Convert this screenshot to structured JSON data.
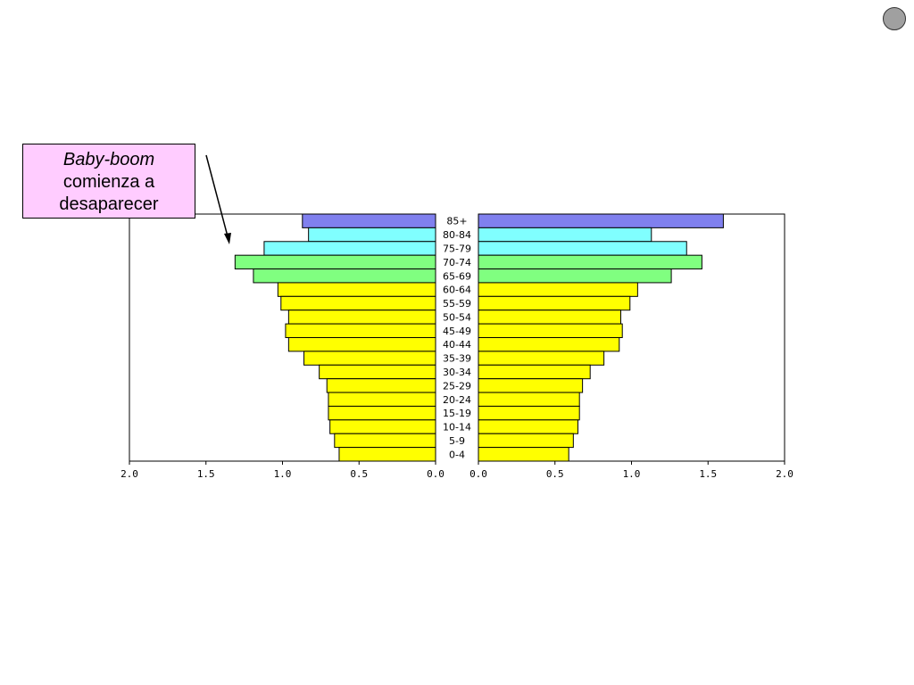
{
  "annotation": {
    "line1": "Baby-boom",
    "line2": "comienza a",
    "line3": "desaparecer"
  },
  "colors": {
    "oldest": "#8080ee",
    "old": "#80ffff",
    "elderly": "#80ff80",
    "main": "#ffff00",
    "callout_bg": "#ffccff"
  },
  "chart_data": {
    "type": "bar",
    "orientation": "horizontal-pyramid",
    "categories": [
      "85+",
      "80-84",
      "75-79",
      "70-74",
      "65-69",
      "60-64",
      "55-59",
      "50-54",
      "45-49",
      "40-44",
      "35-39",
      "30-34",
      "25-29",
      "20-24",
      "15-19",
      "10-14",
      "5-9",
      "0-4"
    ],
    "series": [
      {
        "side": "left",
        "values": [
          0.87,
          0.83,
          1.12,
          1.31,
          1.19,
          1.03,
          1.01,
          0.96,
          0.98,
          0.96,
          0.86,
          0.76,
          0.71,
          0.7,
          0.7,
          0.69,
          0.66,
          0.63
        ]
      },
      {
        "side": "right",
        "values": [
          1.6,
          1.13,
          1.36,
          1.46,
          1.26,
          1.04,
          0.99,
          0.93,
          0.94,
          0.92,
          0.82,
          0.73,
          0.68,
          0.66,
          0.66,
          0.65,
          0.62,
          0.59
        ]
      }
    ],
    "category_colors": [
      "oldest",
      "old",
      "old",
      "elderly",
      "elderly",
      "main",
      "main",
      "main",
      "main",
      "main",
      "main",
      "main",
      "main",
      "main",
      "main",
      "main",
      "main",
      "main"
    ],
    "left_ticks": [
      "2.0",
      "1.5",
      "1.0",
      "0.5",
      "0.0"
    ],
    "right_ticks": [
      "0.0",
      "0.5",
      "1.0",
      "1.5",
      "2.0"
    ],
    "xlim": [
      0,
      2.0
    ]
  }
}
